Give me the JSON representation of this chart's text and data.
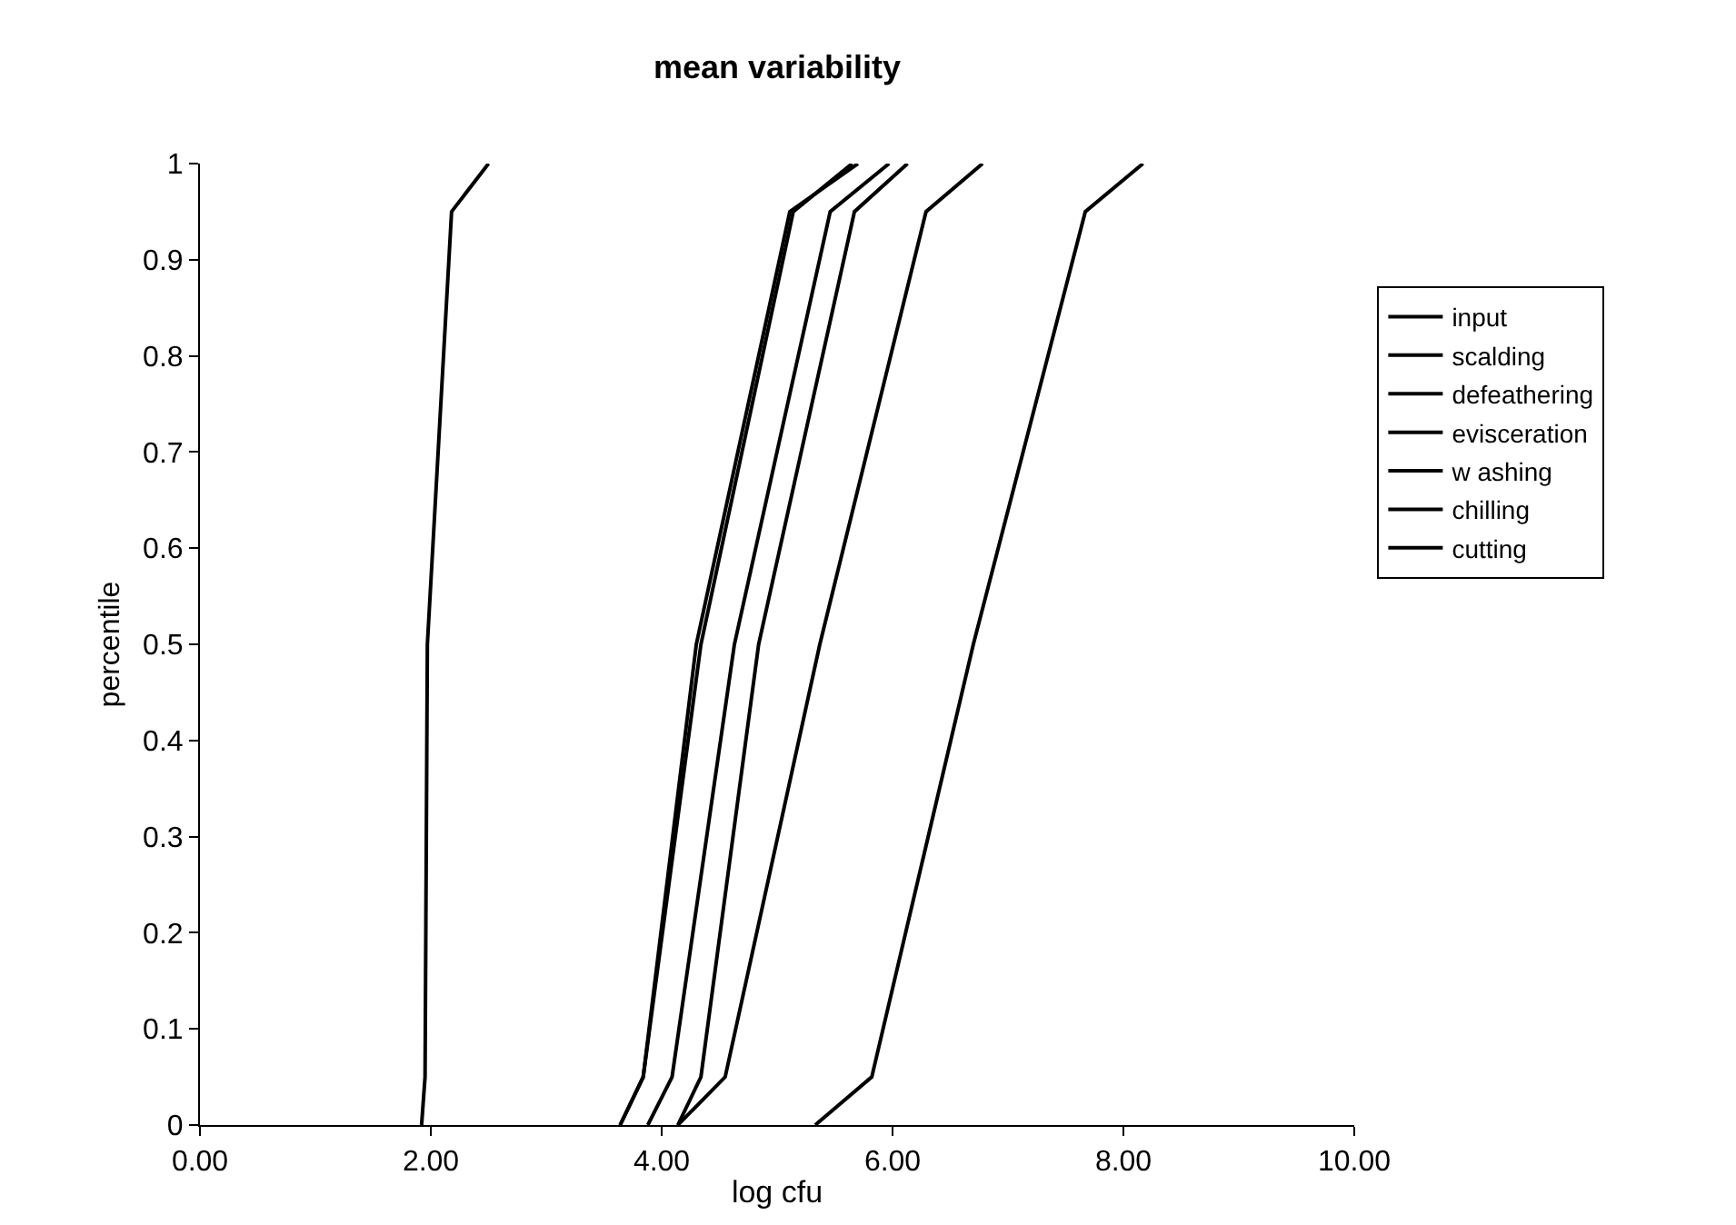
{
  "chart_data": {
    "type": "line",
    "title": "mean variability",
    "xlabel": "log cfu",
    "ylabel": "percentile",
    "xlim": [
      0,
      10
    ],
    "ylim": [
      0,
      1
    ],
    "xticks": [
      {
        "value": 0,
        "label": "0.00"
      },
      {
        "value": 2,
        "label": "2.00"
      },
      {
        "value": 4,
        "label": "4.00"
      },
      {
        "value": 6,
        "label": "6.00"
      },
      {
        "value": 8,
        "label": "8.00"
      },
      {
        "value": 10,
        "label": "10.00"
      }
    ],
    "yticks": [
      0,
      0.1,
      0.2,
      0.3,
      0.4,
      0.5,
      0.6,
      0.7,
      0.8,
      0.9,
      1
    ],
    "grid": false,
    "legend": "right",
    "marker": "none",
    "line_style": "solid",
    "series": [
      {
        "name": "input",
        "color": "#000000",
        "x": [
          5.33,
          5.82,
          6.7,
          7.67,
          8.17
        ],
        "values": [
          0,
          0.05,
          0.5,
          0.95,
          1
        ]
      },
      {
        "name": "scalding",
        "color": "#000000",
        "x": [
          4.14,
          4.55,
          5.37,
          6.29,
          6.78
        ],
        "values": [
          0,
          0.05,
          0.5,
          0.95,
          1
        ]
      },
      {
        "name": "defeathering",
        "color": "#000000",
        "x": [
          4.14,
          4.34,
          4.84,
          5.67,
          6.13
        ],
        "values": [
          0,
          0.05,
          0.5,
          0.95,
          1
        ]
      },
      {
        "name": "evisceration",
        "color": "#000000",
        "x": [
          3.64,
          3.84,
          4.34,
          5.14,
          5.65
        ],
        "values": [
          0,
          0.05,
          0.5,
          0.95,
          1
        ]
      },
      {
        "name": "w ashing",
        "color": "#000000",
        "x": [
          3.88,
          4.09,
          4.63,
          5.46,
          5.97
        ],
        "values": [
          0,
          0.05,
          0.5,
          0.95,
          1
        ]
      },
      {
        "name": "chilling",
        "color": "#000000",
        "x": [
          1.92,
          1.95,
          1.97,
          2.18,
          2.5
        ],
        "values": [
          0,
          0.05,
          0.5,
          0.95,
          1
        ]
      },
      {
        "name": "cutting",
        "color": "#000000",
        "x": [
          3.64,
          3.84,
          4.3,
          5.11,
          5.7
        ],
        "values": [
          0,
          0.05,
          0.5,
          0.95,
          1
        ]
      }
    ]
  }
}
